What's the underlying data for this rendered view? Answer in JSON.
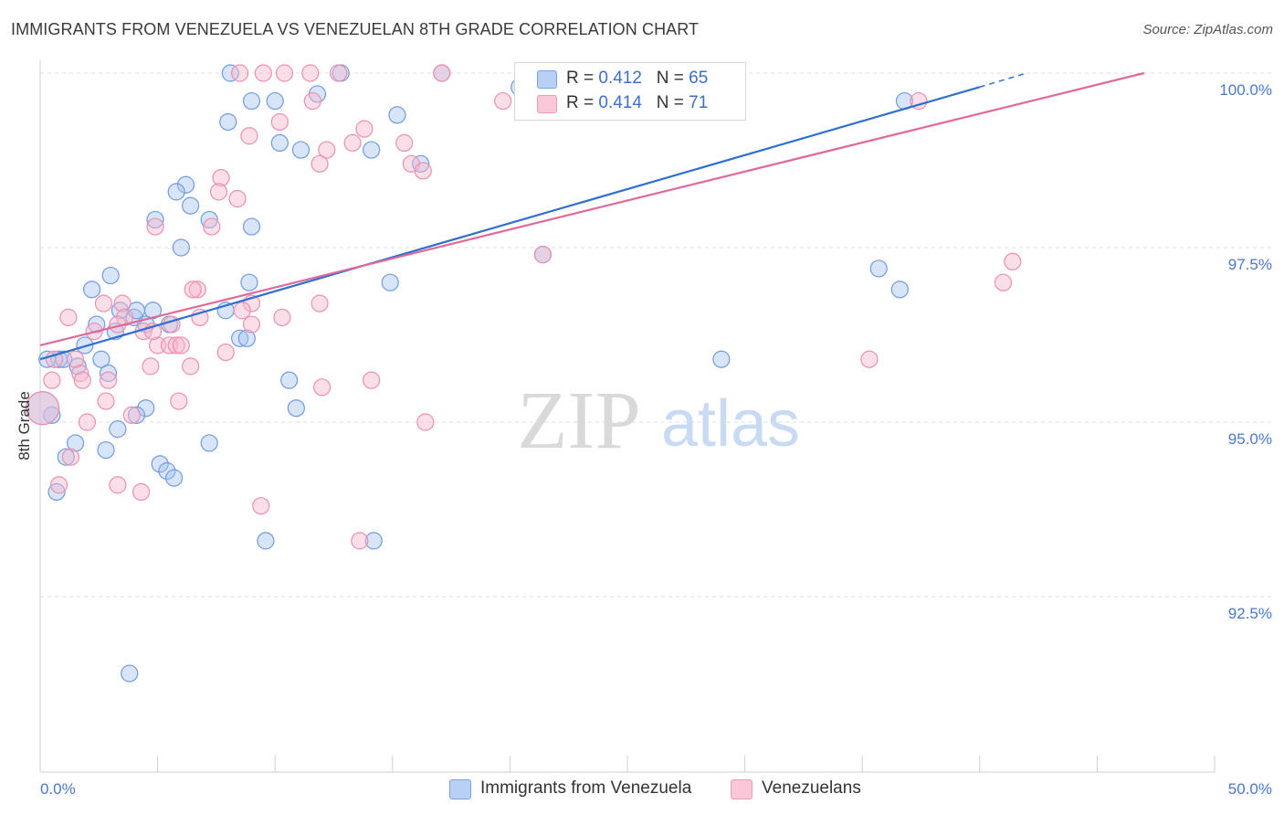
{
  "title": "IMMIGRANTS FROM VENEZUELA VS VENEZUELAN 8TH GRADE CORRELATION CHART",
  "source": "Source: ZipAtlas.com",
  "watermark": {
    "zip": "ZIP",
    "atlas": "atlas"
  },
  "colors": {
    "blue_fill": "#a9c6f0",
    "blue_stroke": "#6f9be0",
    "blue_line": "#2f6fd0",
    "pink_fill": "#f6b8cc",
    "pink_stroke": "#ec8faf",
    "pink_line": "#e0689a",
    "grid": "#dddddd",
    "axis_text": "#4a78c9"
  },
  "legend": {
    "rows": [
      {
        "r_label": "R = ",
        "r_value": "0.412",
        "n_label": "N = ",
        "n_value": "65"
      },
      {
        "r_label": "R = ",
        "r_value": "0.414",
        "n_label": "N = ",
        "n_value": "71"
      }
    ]
  },
  "chart_data": {
    "type": "scatter",
    "title": "IMMIGRANTS FROM VENEZUELA VS VENEZUELAN 8TH GRADE CORRELATION CHART",
    "xlabel": "",
    "ylabel": "8th Grade",
    "xlim": [
      0,
      50
    ],
    "ylim": [
      90.5,
      100.4
    ],
    "x_tick_labels": [
      "0.0%",
      "50.0%"
    ],
    "y_ticks": [
      92.5,
      95.0,
      97.5,
      100.0
    ],
    "y_tick_labels": [
      "92.5%",
      "95.0%",
      "97.5%",
      "100.0%"
    ],
    "grid": true,
    "legend_position": "top-center",
    "series": [
      {
        "name": "Immigrants from Venezuela",
        "color": "blue",
        "r": 0.412,
        "n": 65,
        "trend": {
          "x": [
            0,
            40
          ],
          "y": [
            95.9,
            99.8
          ],
          "dashed_to": [
            42,
            100.0
          ]
        },
        "points": [
          [
            8.1,
            100.0
          ],
          [
            12.8,
            100.0
          ],
          [
            17.1,
            100.0
          ],
          [
            20.4,
            99.8
          ],
          [
            9.0,
            99.6
          ],
          [
            10.0,
            99.6
          ],
          [
            15.2,
            99.4
          ],
          [
            36.8,
            99.6
          ],
          [
            8.0,
            99.3
          ],
          [
            10.2,
            99.0
          ],
          [
            11.1,
            98.9
          ],
          [
            14.1,
            98.9
          ],
          [
            16.2,
            98.7
          ],
          [
            6.2,
            98.4
          ],
          [
            5.8,
            98.3
          ],
          [
            6.4,
            98.1
          ],
          [
            4.9,
            97.9
          ],
          [
            7.2,
            97.9
          ],
          [
            9.0,
            97.8
          ],
          [
            6.0,
            97.5
          ],
          [
            3.0,
            97.1
          ],
          [
            2.2,
            96.9
          ],
          [
            8.9,
            97.0
          ],
          [
            14.9,
            97.0
          ],
          [
            35.7,
            97.2
          ],
          [
            36.6,
            96.9
          ],
          [
            4.8,
            96.6
          ],
          [
            3.4,
            96.6
          ],
          [
            2.4,
            96.4
          ],
          [
            4.0,
            96.5
          ],
          [
            4.5,
            96.4
          ],
          [
            3.2,
            96.3
          ],
          [
            8.5,
            96.2
          ],
          [
            8.8,
            96.2
          ],
          [
            1.9,
            96.1
          ],
          [
            0.8,
            95.9
          ],
          [
            1.0,
            95.9
          ],
          [
            2.6,
            95.9
          ],
          [
            1.6,
            95.8
          ],
          [
            29.0,
            95.9
          ],
          [
            10.6,
            95.6
          ],
          [
            4.5,
            95.2
          ],
          [
            4.1,
            95.1
          ],
          [
            10.9,
            95.2
          ],
          [
            0.5,
            95.1
          ],
          [
            3.3,
            94.9
          ],
          [
            1.5,
            94.7
          ],
          [
            7.2,
            94.7
          ],
          [
            1.1,
            94.5
          ],
          [
            2.8,
            94.6
          ],
          [
            5.1,
            94.4
          ],
          [
            5.4,
            94.3
          ],
          [
            5.7,
            94.2
          ],
          [
            0.7,
            94.0
          ],
          [
            9.6,
            93.3
          ],
          [
            14.2,
            93.3
          ],
          [
            3.8,
            91.4
          ],
          [
            0.1,
            95.2
          ],
          [
            0.3,
            95.9
          ],
          [
            11.8,
            99.7
          ],
          [
            5.5,
            96.4
          ],
          [
            4.1,
            96.6
          ],
          [
            2.9,
            95.7
          ],
          [
            21.4,
            97.4
          ],
          [
            7.9,
            96.6
          ]
        ]
      },
      {
        "name": "Venezuelans",
        "color": "pink",
        "r": 0.414,
        "n": 71,
        "trend": {
          "x": [
            0,
            47
          ],
          "y": [
            96.1,
            100.0
          ]
        },
        "points": [
          [
            8.5,
            100.0
          ],
          [
            9.5,
            100.0
          ],
          [
            10.4,
            100.0
          ],
          [
            11.5,
            100.0
          ],
          [
            12.7,
            100.0
          ],
          [
            17.1,
            100.0
          ],
          [
            11.6,
            99.6
          ],
          [
            19.7,
            99.6
          ],
          [
            37.4,
            99.6
          ],
          [
            10.2,
            99.3
          ],
          [
            13.8,
            99.2
          ],
          [
            8.9,
            99.1
          ],
          [
            13.3,
            99.0
          ],
          [
            15.5,
            99.0
          ],
          [
            12.2,
            98.9
          ],
          [
            11.9,
            98.7
          ],
          [
            15.8,
            98.7
          ],
          [
            16.3,
            98.6
          ],
          [
            7.7,
            98.5
          ],
          [
            7.6,
            98.3
          ],
          [
            8.4,
            98.2
          ],
          [
            4.9,
            97.8
          ],
          [
            7.3,
            97.8
          ],
          [
            21.4,
            97.4
          ],
          [
            41.4,
            97.3
          ],
          [
            41.0,
            97.0
          ],
          [
            6.7,
            96.9
          ],
          [
            6.5,
            96.9
          ],
          [
            2.7,
            96.7
          ],
          [
            3.5,
            96.7
          ],
          [
            11.9,
            96.7
          ],
          [
            9.0,
            96.7
          ],
          [
            8.6,
            96.6
          ],
          [
            10.3,
            96.5
          ],
          [
            1.2,
            96.5
          ],
          [
            6.8,
            96.5
          ],
          [
            3.6,
            96.5
          ],
          [
            3.3,
            96.4
          ],
          [
            4.4,
            96.3
          ],
          [
            2.3,
            96.3
          ],
          [
            5.0,
            96.1
          ],
          [
            5.5,
            96.1
          ],
          [
            5.8,
            96.1
          ],
          [
            7.9,
            96.0
          ],
          [
            35.3,
            95.9
          ],
          [
            6.4,
            95.8
          ],
          [
            4.7,
            95.8
          ],
          [
            0.6,
            95.9
          ],
          [
            1.7,
            95.7
          ],
          [
            14.1,
            95.6
          ],
          [
            2.9,
            95.6
          ],
          [
            1.8,
            95.6
          ],
          [
            0.5,
            95.6
          ],
          [
            12.0,
            95.5
          ],
          [
            2.8,
            95.3
          ],
          [
            5.9,
            95.3
          ],
          [
            3.9,
            95.1
          ],
          [
            2.0,
            95.0
          ],
          [
            16.4,
            95.0
          ],
          [
            1.3,
            94.5
          ],
          [
            3.3,
            94.1
          ],
          [
            0.8,
            94.1
          ],
          [
            4.3,
            94.0
          ],
          [
            9.4,
            93.8
          ],
          [
            13.6,
            93.3
          ],
          [
            6.0,
            96.1
          ],
          [
            4.8,
            96.3
          ],
          [
            0.1,
            95.2
          ],
          [
            5.6,
            96.4
          ],
          [
            1.5,
            95.9
          ],
          [
            9.0,
            96.4
          ]
        ]
      }
    ]
  },
  "bottom_legend": {
    "items": [
      {
        "label": "Immigrants from Venezuela"
      },
      {
        "label": "Venezuelans"
      }
    ]
  }
}
